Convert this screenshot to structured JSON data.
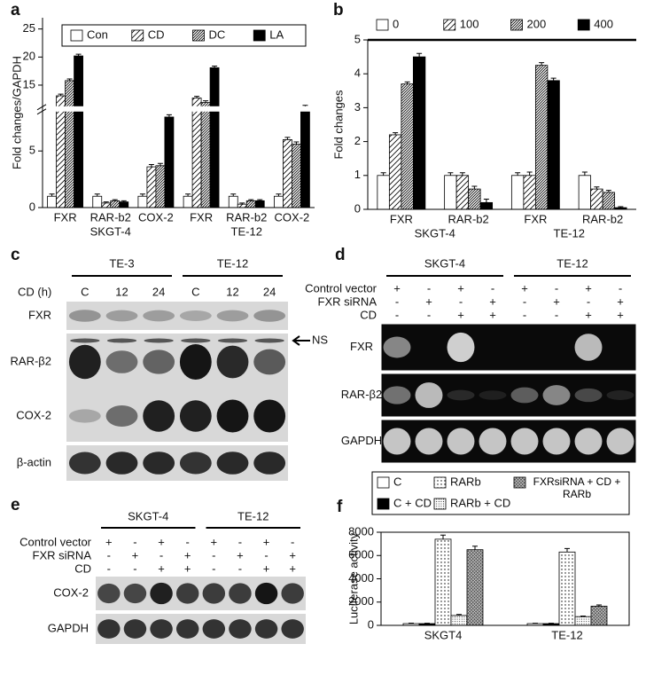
{
  "chart_data": [
    {
      "label": "a",
      "type": "bar",
      "ylabel": "Fold changes/GAPDH",
      "ylim": [
        0,
        27
      ],
      "axis_break": [
        8.6,
        11
      ],
      "yticks": [
        0,
        5,
        15,
        20,
        25
      ],
      "categories": [
        "FXR",
        "RAR-b2",
        "COX-2",
        "FXR",
        "RAR-b2",
        "COX-2"
      ],
      "groups": [
        "SKGT-4",
        "TE-12"
      ],
      "series": [
        {
          "name": "Con",
          "color": "#ffffff",
          "pattern": "none",
          "values": [
            1,
            1,
            1,
            1,
            1,
            1
          ],
          "errors": [
            0.2,
            0.2,
            0.2,
            0.2,
            0.2,
            0.2
          ]
        },
        {
          "name": "CD",
          "color": "#ffffff",
          "pattern": "hatch",
          "values": [
            13.1,
            0.4,
            3.6,
            12.7,
            0.3,
            6.0
          ],
          "errors": [
            0.3,
            0.1,
            0.2,
            0.3,
            0.1,
            0.2
          ]
        },
        {
          "name": "DC",
          "color": "#ffffff",
          "pattern": "dense-hatch",
          "values": [
            15.8,
            0.6,
            3.7,
            11.9,
            0.6,
            5.6
          ],
          "errors": [
            0.3,
            0.1,
            0.2,
            0.3,
            0.1,
            0.2
          ]
        },
        {
          "name": "LA",
          "color": "#000000",
          "pattern": "solid",
          "values": [
            20.2,
            0.5,
            8.0,
            18.1,
            0.6,
            11.1
          ],
          "errors": [
            0.3,
            0.1,
            0.2,
            0.3,
            0.1,
            0.3
          ]
        }
      ]
    },
    {
      "label": "b",
      "type": "bar",
      "ylabel": "Fold changes",
      "ylim": [
        0,
        5
      ],
      "yticks": [
        0,
        1,
        2,
        3,
        4,
        5
      ],
      "categories": [
        "FXR",
        "RAR-b2",
        "FXR",
        "RAR-b2"
      ],
      "groups": [
        "SKGT-4",
        "TE-12"
      ],
      "series": [
        {
          "name": "0",
          "color": "#ffffff",
          "pattern": "none",
          "values": [
            1.0,
            1.0,
            1.0,
            1.0
          ],
          "errors": [
            0.08,
            0.08,
            0.08,
            0.1
          ]
        },
        {
          "name": "100",
          "color": "#ffffff",
          "pattern": "hatch",
          "values": [
            2.2,
            1.0,
            1.0,
            0.6
          ],
          "errors": [
            0.06,
            0.08,
            0.1,
            0.06
          ]
        },
        {
          "name": "200",
          "color": "#ffffff",
          "pattern": "dense-hatch",
          "values": [
            3.7,
            0.6,
            4.25,
            0.5
          ],
          "errors": [
            0.06,
            0.08,
            0.08,
            0.06
          ]
        },
        {
          "name": "400",
          "color": "#000000",
          "pattern": "solid",
          "values": [
            4.5,
            0.2,
            3.8,
            0.05
          ],
          "errors": [
            0.1,
            0.1,
            0.07,
            0.03
          ]
        }
      ]
    },
    {
      "label": "f",
      "type": "bar",
      "ylabel": "Luciferase activity",
      "ylim": [
        0,
        8000
      ],
      "yticks": [
        0,
        2000,
        4000,
        6000,
        8000
      ],
      "categories": [
        "SKGT4",
        "TE-12"
      ],
      "frame": true,
      "series": [
        {
          "name": "C",
          "color": "#ffffff",
          "pattern": "none",
          "values": [
            150,
            150
          ],
          "errors": [
            40,
            30
          ]
        },
        {
          "name": "C + CD",
          "color": "#000000",
          "pattern": "solid",
          "values": [
            150,
            150
          ],
          "errors": [
            30,
            30
          ]
        },
        {
          "name": "RARb",
          "color": "#ffffff",
          "pattern": "dots",
          "values": [
            7400,
            6300
          ],
          "errors": [
            350,
            300
          ]
        },
        {
          "name": "RARb + CD",
          "color": "#ffffff",
          "pattern": "fine-dots",
          "values": [
            850,
            750
          ],
          "errors": [
            80,
            50
          ]
        },
        {
          "name": "FXRsiRNA + CD + RARb",
          "color": "#555555",
          "pattern": "crosshatch",
          "values": [
            6500,
            1650
          ],
          "errors": [
            300,
            100
          ]
        }
      ]
    }
  ],
  "blots": {
    "c": {
      "label": "c",
      "groups": [
        "TE-3",
        "TE-12"
      ],
      "condition": "CD (h)",
      "lanes": [
        "C",
        "12",
        "24",
        "C",
        "12",
        "24"
      ],
      "rows": [
        "FXR",
        "RAR-β2",
        "COX-2",
        "β-actin"
      ],
      "annotation": "NS"
    },
    "d": {
      "label": "d",
      "groups": [
        "SKGT-4",
        "TE-12"
      ],
      "conditions": [
        {
          "name": "Control vector",
          "lanes": [
            "+",
            "-",
            "+",
            "-",
            "+",
            "-",
            "+",
            "-"
          ]
        },
        {
          "name": "FXR siRNA",
          "lanes": [
            "-",
            "+",
            "-",
            "+",
            "-",
            "+",
            "-",
            "+"
          ]
        },
        {
          "name": "CD",
          "lanes": [
            "-",
            "-",
            "+",
            "+",
            "-",
            "-",
            "+",
            "+"
          ]
        }
      ],
      "rows": [
        "FXR",
        "RAR-β2",
        "GAPDH"
      ]
    },
    "e": {
      "label": "e",
      "groups": [
        "SKGT-4",
        "TE-12"
      ],
      "conditions": [
        {
          "name": "Control vector",
          "lanes": [
            "+",
            "-",
            "+",
            "-",
            "+",
            "-",
            "+",
            "-"
          ]
        },
        {
          "name": "FXR siRNA",
          "lanes": [
            "-",
            "+",
            "-",
            "+",
            "-",
            "+",
            "-",
            "+"
          ]
        },
        {
          "name": "CD",
          "lanes": [
            "-",
            "-",
            "+",
            "+",
            "-",
            "-",
            "+",
            "+"
          ]
        }
      ],
      "rows": [
        "COX-2",
        "GAPDH"
      ]
    }
  }
}
